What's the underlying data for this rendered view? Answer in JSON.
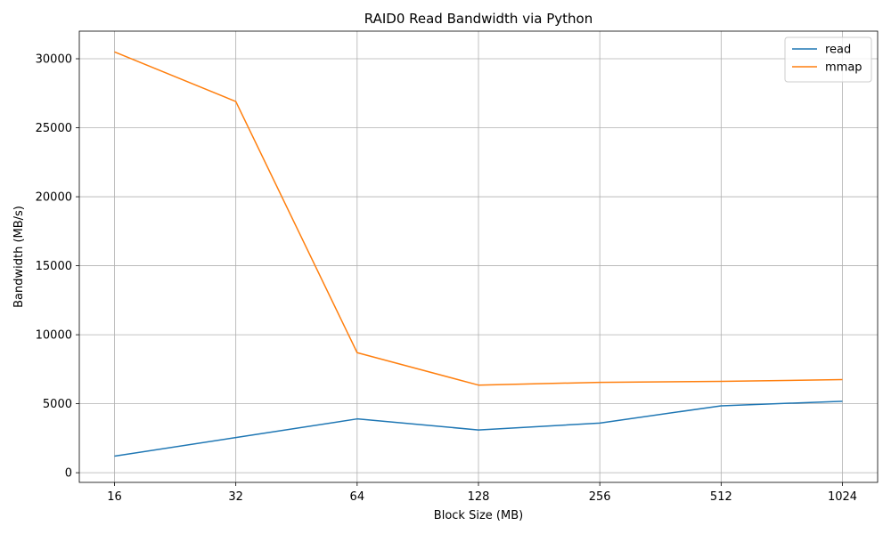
{
  "chart_data": {
    "type": "line",
    "title": "RAID0 Read Bandwidth via Python",
    "xlabel": "Block Size (MB)",
    "ylabel": "Bandwidth (MB/s)",
    "x_scale": "log2",
    "categories": [
      "16",
      "32",
      "64",
      "128",
      "256",
      "512",
      "1024"
    ],
    "x": [
      16,
      32,
      64,
      128,
      256,
      512,
      1024
    ],
    "ylim": [
      -700,
      32000
    ],
    "yticks": [
      0,
      5000,
      10000,
      15000,
      20000,
      25000,
      30000
    ],
    "grid": true,
    "legend_position": "top-right",
    "series": [
      {
        "name": "read",
        "color": "#1f77b4",
        "values": [
          1200,
          2550,
          3900,
          3100,
          3600,
          4850,
          5180
        ]
      },
      {
        "name": "mmap",
        "color": "#ff7f0e",
        "values": [
          30500,
          26900,
          8700,
          6350,
          6550,
          6620,
          6750
        ]
      }
    ]
  }
}
